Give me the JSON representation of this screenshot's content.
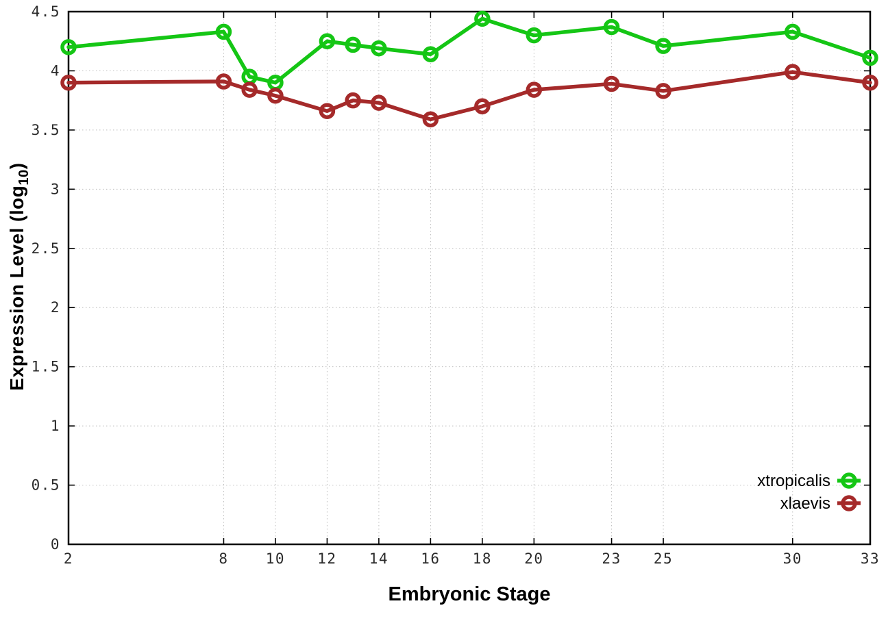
{
  "chart_data": {
    "type": "line",
    "title": "",
    "xlabel": "Embryonic Stage",
    "ylabel_prefix": "Expression Level (log",
    "ylabel_sub": "10",
    "ylabel_suffix": ")",
    "x": [
      2,
      8,
      9,
      10,
      12,
      13,
      14,
      16,
      18,
      20,
      23,
      25,
      30,
      33
    ],
    "x_ticks": [
      2,
      8,
      10,
      12,
      14,
      16,
      18,
      20,
      23,
      25,
      30,
      33
    ],
    "y_ticks": [
      0,
      0.5,
      1,
      1.5,
      2,
      2.5,
      3,
      3.5,
      4,
      4.5
    ],
    "xlim": [
      2,
      33
    ],
    "ylim": [
      0,
      4.5
    ],
    "grid": true,
    "legend_position": "bottom-right",
    "series": [
      {
        "name": "xtropicalis",
        "color": "#15c615",
        "values": [
          4.2,
          4.33,
          3.95,
          3.9,
          4.25,
          4.22,
          4.19,
          4.14,
          4.44,
          4.3,
          4.37,
          4.21,
          4.33,
          4.11
        ]
      },
      {
        "name": "xlaevis",
        "color": "#a52a2a",
        "values": [
          3.9,
          3.91,
          3.84,
          3.79,
          3.66,
          3.75,
          3.73,
          3.59,
          3.7,
          3.84,
          3.89,
          3.83,
          3.99,
          3.9
        ]
      }
    ],
    "colors": {
      "grid": "#bdbdbd",
      "axis": "#000000",
      "tick_text": "#2a2a2a",
      "legend_text": "#000000",
      "background": "#ffffff"
    }
  }
}
